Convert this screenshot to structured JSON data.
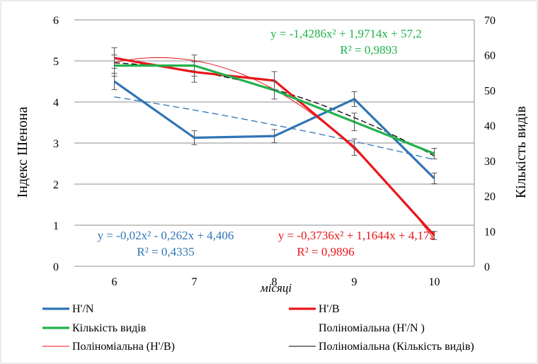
{
  "chart_data": {
    "type": "line",
    "title": "",
    "xlabel": "місяці",
    "ylabel": "Індекс Шенона",
    "y2label": "Кількість видів",
    "x": [
      6,
      7,
      8,
      9,
      10
    ],
    "ylim": [
      0,
      6
    ],
    "y2lim": [
      0,
      70
    ],
    "yticks": [
      "0",
      "1",
      "2",
      "3",
      "4",
      "5",
      "6"
    ],
    "y2ticks": [
      "0",
      "10",
      "20",
      "30",
      "40",
      "50",
      "60",
      "70"
    ],
    "xticks": [
      "6",
      "7",
      "8",
      "9",
      "10"
    ],
    "grid": true,
    "legend_position": "bottom",
    "series": [
      {
        "name": "H'/N",
        "axis": "left",
        "color": "#2f75b5",
        "values": [
          4.5,
          3.13,
          3.17,
          4.07,
          2.14
        ],
        "error": [
          0.2,
          0.17,
          0.16,
          0.18,
          0.13
        ]
      },
      {
        "name": "H'/B",
        "axis": "left",
        "color": "#e8161b",
        "values": [
          5.07,
          4.73,
          4.52,
          2.9,
          0.75
        ],
        "error": [
          0.25,
          0.25,
          0.22,
          0.2,
          0.1
        ]
      },
      {
        "name": "Кількість видів",
        "axis": "right",
        "color": "#22b14c",
        "values": [
          57,
          57,
          50,
          41,
          32
        ],
        "error": [
          3,
          3,
          2.5,
          2.5,
          1.5
        ]
      }
    ],
    "trendlines": [
      {
        "name": "Поліноміальна (H'/N )",
        "for": "H'/N",
        "axis": "left",
        "color": "#2f75b5",
        "style": "dashed",
        "coefficients": [
          -0.02,
          -0.262,
          4.406
        ]
      },
      {
        "name": "Поліноміальна (H'/B)",
        "for": "H'/B",
        "axis": "left",
        "color": "#e8161b",
        "style": "thin",
        "coefficients": [
          -0.3736,
          1.1644,
          4.172
        ]
      },
      {
        "name": "Поліноміальна (Кількість видів)",
        "for": "Кількість видів",
        "axis": "right",
        "color": "#000000",
        "style": "dashed",
        "coefficients": [
          -1.4286,
          1.9714,
          57.2
        ]
      }
    ],
    "annotations": [
      {
        "name": "eq-green",
        "color": "#22b14c",
        "line1": "y = -1,4286x² + 1,9714x + 57,2",
        "line2": "R² = 0,9893"
      },
      {
        "name": "eq-blue",
        "color": "#2f75b5",
        "line1": "y = -0,02x² - 0,262x + 4,406",
        "line2": "R² = 0,4335"
      },
      {
        "name": "eq-red",
        "color": "#e8161b",
        "line1": "y = -0,3736x² + 1,1644x + 4,172",
        "line2": "R² = 0,9896"
      }
    ],
    "legend": [
      {
        "label": "H'/N",
        "color": "#2f75b5",
        "style": "thick"
      },
      {
        "label": "H'/B",
        "color": "#e8161b",
        "style": "thick"
      },
      {
        "label": "Кількість видів",
        "color": "#22b14c",
        "style": "thick"
      },
      {
        "label": "Поліноміальна (H'/N )",
        "color": "#2f75b5",
        "style": "none"
      },
      {
        "label": "Поліноміальна (H'/B)",
        "color": "#e8161b",
        "style": "thin"
      },
      {
        "label": "Поліноміальна (Кількість видів)",
        "color": "#000000",
        "style": "thin"
      }
    ]
  }
}
